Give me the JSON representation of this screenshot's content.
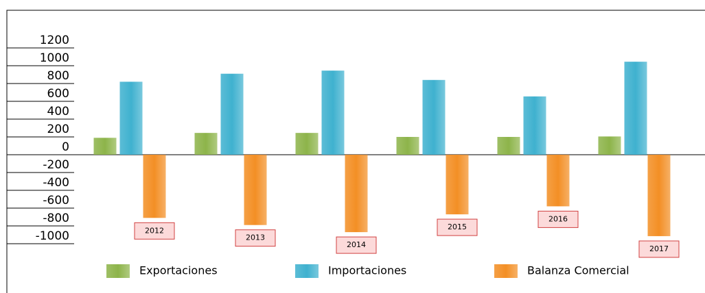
{
  "chart_data": {
    "type": "bar",
    "categories": [
      "2012",
      "2013",
      "2014",
      "2015",
      "2016",
      "2017"
    ],
    "series": [
      {
        "name": "Exportaciones",
        "color": "#8db44a",
        "values": [
          190,
          245,
          245,
          200,
          200,
          205
        ]
      },
      {
        "name": "Importaciones",
        "color": "#3fb1cf",
        "values": [
          820,
          910,
          945,
          840,
          655,
          1045
        ]
      },
      {
        "name": "Balanza Comercial",
        "color": "#f38f25",
        "values": [
          -710,
          -790,
          -870,
          -670,
          -580,
          -915
        ]
      }
    ],
    "ylim": [
      -1000,
      1200
    ],
    "yticks": [
      1200,
      1000,
      800,
      600,
      400,
      200,
      0,
      -200,
      -400,
      -600,
      -800,
      -1000
    ],
    "legend": "bottom"
  }
}
